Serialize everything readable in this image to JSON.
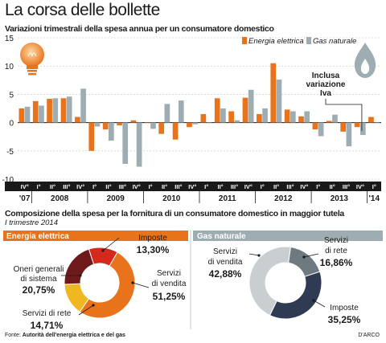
{
  "title": "La corsa delle bollette",
  "subtitle": "Variazioni trimestrali della spesa annua per un consumatore domestico",
  "section2_title": "Composizione della spesa per la fornitura di un consumatore domestico in maggior tutela",
  "period": "I trimestre 2014",
  "source_label": "Fonte: ",
  "source_name": "Autorità dell'energia elettrica e del gas",
  "credit": "D'ARCO",
  "colors": {
    "electricity": "#e8731a",
    "gas": "#9eadb2",
    "gas_dark": "#2e3b52",
    "grid": "#b5b5b5"
  },
  "icons": [
    "lightbulb-icon",
    "gas-flame-icon"
  ],
  "chart_data": [
    {
      "type": "bar",
      "title": "Variazioni trimestrali della spesa annua per un consumatore domestico",
      "ylim": [
        -10,
        15
      ],
      "yticks": [
        15,
        10,
        5,
        0,
        -5,
        -10
      ],
      "grid": true,
      "legend_position": "top-right",
      "annotation": "Inclusa variazione Iva",
      "categories": [
        "IV°",
        "I°",
        "II°",
        "III°",
        "IV°",
        "I°",
        "II°",
        "III°",
        "IV°",
        "I°",
        "II°",
        "III°",
        "IV°",
        "I°",
        "II°",
        "III°",
        "IV°",
        "I°",
        "II°",
        "III°",
        "IV°",
        "I°",
        "II°",
        "III°",
        "IV°",
        "I°"
      ],
      "years": [
        {
          "label": "'07",
          "count": 1
        },
        {
          "label": "2008",
          "count": 4
        },
        {
          "label": "2009",
          "count": 4
        },
        {
          "label": "2010",
          "count": 4
        },
        {
          "label": "2011",
          "count": 4
        },
        {
          "label": "2012",
          "count": 4
        },
        {
          "label": "2013",
          "count": 4
        },
        {
          "label": "'14",
          "count": 1
        }
      ],
      "series": [
        {
          "name": "Energia elettrica",
          "color": "#e8731a",
          "values": [
            2.5,
            3.8,
            4.2,
            4.3,
            1.0,
            -5.0,
            -1.2,
            -0.5,
            0.4,
            0.0,
            -2.0,
            -3.0,
            -0.8,
            1.5,
            4.3,
            2.0,
            4.4,
            1.5,
            10.5,
            2.3,
            1.1,
            -1.2,
            0.3,
            -1.6,
            -0.8,
            1.0
          ]
        },
        {
          "name": "Gas naturale",
          "color": "#9eadb2",
          "values": [
            2.8,
            3.0,
            4.3,
            4.6,
            6.0,
            -0.7,
            -3.2,
            -7.3,
            -7.8,
            -1.1,
            3.3,
            3.9,
            -0.3,
            0.0,
            2.5,
            0.4,
            5.8,
            2.5,
            7.6,
            2.0,
            2.0,
            -2.4,
            1.4,
            -4.2,
            -2.2,
            0.0
          ]
        }
      ]
    },
    {
      "type": "pie",
      "title": "Energia elettrica",
      "slices": [
        {
          "name": "Servizi di vendita",
          "value": 51.25,
          "label": "51,25%",
          "color": "#e8731a"
        },
        {
          "name": "Servizi di rete",
          "value": 14.71,
          "label": "14,71%",
          "color": "#f0b820"
        },
        {
          "name": "Oneri generali di sistema",
          "value": 20.75,
          "label": "20,75%",
          "color": "#6e1a1a"
        },
        {
          "name": "Imposte",
          "value": 13.3,
          "label": "13,30%",
          "color": "#d42a1e"
        }
      ]
    },
    {
      "type": "pie",
      "title": "Gas naturale",
      "slices": [
        {
          "name": "Servizi di rete",
          "value": 16.86,
          "label": "16,86%",
          "color": "#6e7a80"
        },
        {
          "name": "Imposte",
          "value": 35.25,
          "label": "35,25%",
          "color": "#2e3b52"
        },
        {
          "name": "Servizi di vendita",
          "value": 42.88,
          "label": "42,88%",
          "color": "#c9cfd1"
        }
      ]
    }
  ]
}
